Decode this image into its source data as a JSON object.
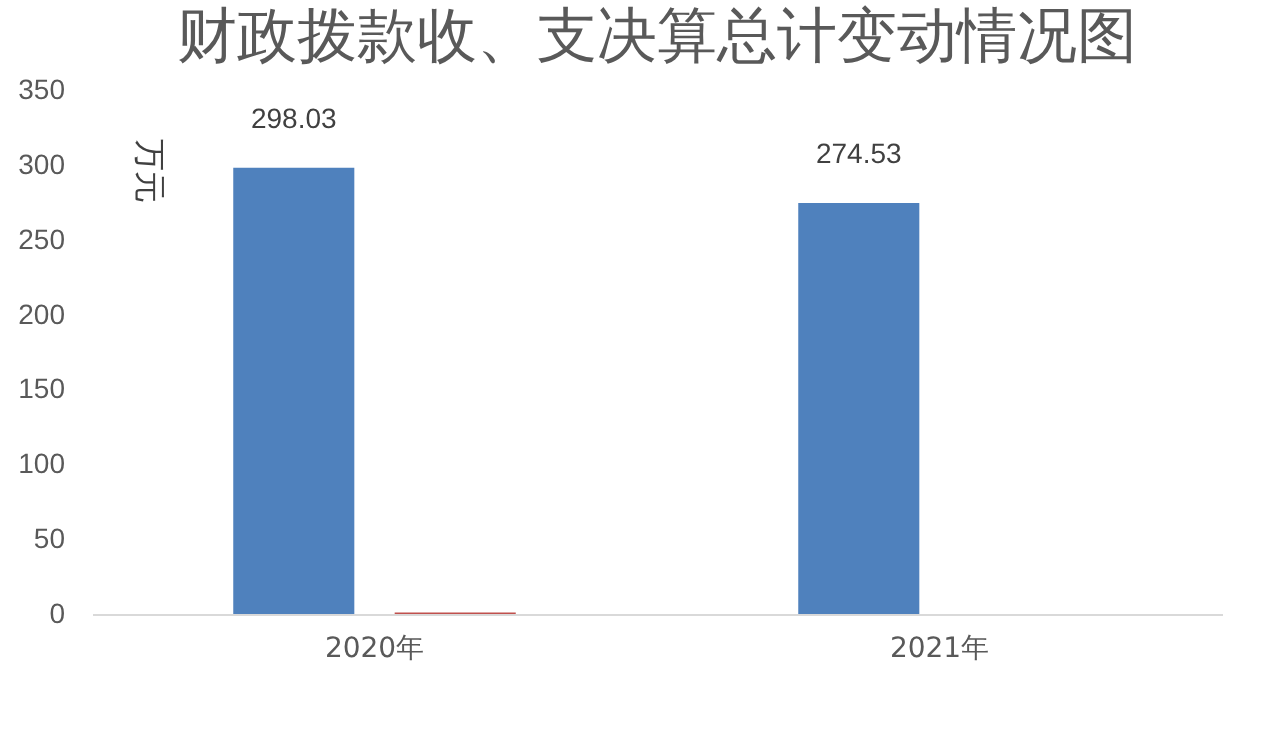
{
  "chart_data": {
    "type": "bar",
    "title": "财政拨款收、支决算总计变动情况图",
    "ylabel": "万元",
    "categories": [
      "2020年",
      "2021年"
    ],
    "series": [
      {
        "color": "#4f81bd",
        "values": [
          298.03,
          274.53
        ],
        "value_labels": [
          "298.03",
          "274.53"
        ]
      },
      {
        "color": "#c0504d",
        "values": [
          1,
          null
        ],
        "value_labels": [
          null,
          null
        ]
      }
    ],
    "ylim": [
      0,
      350
    ],
    "yticks": [
      0,
      50,
      100,
      150,
      200,
      250,
      300,
      350
    ],
    "grid": false,
    "legend": false
  }
}
